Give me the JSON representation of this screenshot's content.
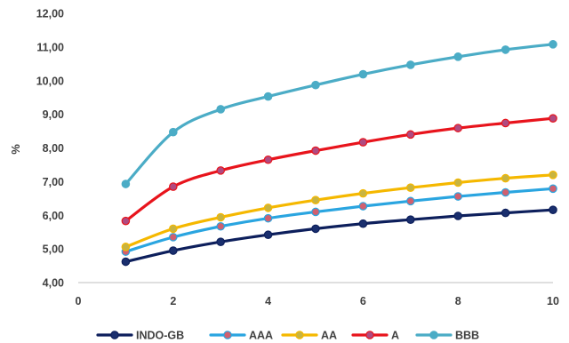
{
  "chart_data": {
    "type": "line",
    "title": "",
    "xlabel": "",
    "ylabel": "%",
    "xlim": [
      0,
      10
    ],
    "ylim": [
      4.0,
      12.0
    ],
    "x_ticks": [
      "0",
      "2",
      "4",
      "6",
      "8",
      "10"
    ],
    "y_ticks": [
      "4,00",
      "5,00",
      "6,00",
      "7,00",
      "8,00",
      "9,00",
      "10,00",
      "11,00",
      "12,00"
    ],
    "grid": false,
    "legend_position": "bottom",
    "x": [
      1,
      2,
      3,
      4,
      5,
      6,
      7,
      8,
      9,
      10
    ],
    "series": [
      {
        "name": "INDO-GB",
        "color": "#0d1f5c",
        "marker": "#1a2f6e",
        "values": [
          4.62,
          4.95,
          5.21,
          5.42,
          5.6,
          5.75,
          5.87,
          5.98,
          6.07,
          6.16
        ]
      },
      {
        "name": "AAA",
        "color": "#2aa5e0",
        "marker": "#d06070",
        "values": [
          4.92,
          5.35,
          5.67,
          5.91,
          6.1,
          6.27,
          6.42,
          6.56,
          6.68,
          6.79
        ]
      },
      {
        "name": "AA",
        "color": "#f5b800",
        "marker": "#c8b440",
        "values": [
          5.06,
          5.6,
          5.94,
          6.22,
          6.45,
          6.65,
          6.82,
          6.97,
          7.1,
          7.2
        ]
      },
      {
        "name": "A",
        "color": "#e8141c",
        "marker": "#b04a80",
        "values": [
          5.83,
          6.85,
          7.33,
          7.65,
          7.92,
          8.17,
          8.4,
          8.59,
          8.74,
          8.88
        ]
      },
      {
        "name": "BBB",
        "color": "#4bacc6",
        "marker": "#4bacc6",
        "values": [
          6.93,
          8.47,
          9.15,
          9.53,
          9.87,
          10.19,
          10.47,
          10.71,
          10.92,
          11.08
        ]
      }
    ]
  }
}
